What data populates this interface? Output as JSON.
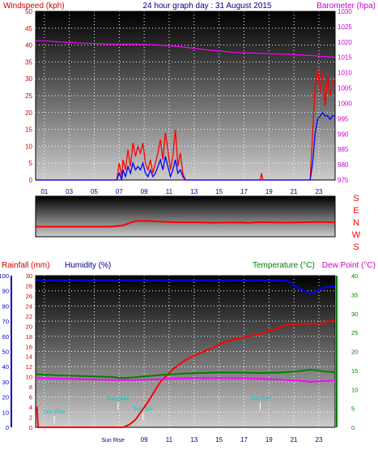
{
  "chart_data": [
    {
      "type": "line",
      "title": "24 hour graph day : 31 August 2015",
      "ylabel_left": "Windspeed (kph)",
      "ylabel_right": "Barometer (hpa)",
      "x_ticks": [
        "01",
        "03",
        "05",
        "07",
        "09",
        "11",
        "13",
        "15",
        "17",
        "19",
        "21",
        "23"
      ],
      "x": [
        0,
        1,
        2,
        3,
        4,
        5,
        6,
        6.5,
        6.7,
        6.9,
        7,
        7.2,
        7.4,
        7.6,
        7.8,
        8,
        8.2,
        8.4,
        8.6,
        8.8,
        9,
        9.2,
        9.4,
        9.6,
        9.8,
        10,
        10.2,
        10.4,
        10.6,
        10.8,
        11,
        11.2,
        11.4,
        11.6,
        11.8,
        12,
        13,
        14,
        15,
        16,
        17,
        18,
        18.1,
        18.2,
        19,
        20,
        21,
        22,
        22.2,
        22.4,
        22.6,
        22.8,
        23,
        23.2,
        23.4,
        23.6,
        23.8,
        24
      ],
      "series": [
        {
          "name": "gust",
          "color": "#ff0000",
          "values": [
            0,
            0,
            0,
            0,
            0,
            0,
            0,
            0,
            5,
            1,
            6,
            3,
            9,
            4,
            11,
            7,
            10,
            8,
            11,
            5,
            3,
            6,
            2,
            5,
            8,
            12,
            6,
            14,
            9,
            3,
            7,
            15,
            4,
            8,
            2,
            0,
            0,
            0,
            0,
            0,
            0,
            0,
            2,
            0,
            0,
            0,
            0,
            0,
            14,
            28,
            33,
            26,
            32,
            22,
            31,
            25,
            29,
            30
          ]
        },
        {
          "name": "wind",
          "color": "#0000ff",
          "values": [
            0,
            0,
            0,
            0,
            0,
            0,
            0,
            0,
            2,
            0,
            3,
            1,
            4,
            2,
            5,
            3,
            4,
            3,
            5,
            2,
            1,
            3,
            1,
            2,
            4,
            6,
            3,
            7,
            4,
            1,
            3,
            6,
            2,
            3,
            1,
            0,
            0,
            0,
            0,
            0,
            0,
            0,
            0,
            0,
            0,
            0,
            0,
            0,
            5,
            14,
            18,
            19,
            20,
            19,
            19,
            18,
            19,
            19
          ]
        }
      ],
      "baro_x": [
        0,
        1,
        2,
        4,
        6,
        8,
        10,
        12,
        14,
        16,
        18,
        20,
        22,
        23,
        24
      ],
      "baro_values": [
        1020.5,
        1020.3,
        1020.0,
        1019.6,
        1019.3,
        1019.3,
        1019.0,
        1018.3,
        1017.3,
        1016.6,
        1016.3,
        1016.0,
        1015.6,
        1015.3,
        1015.0
      ],
      "y_left_ticks": [
        0,
        5,
        10,
        15,
        20,
        25,
        30,
        35,
        40,
        45,
        50
      ],
      "y_right_ticks": [
        975,
        980,
        985,
        990,
        995,
        1000,
        1005,
        1010,
        1015,
        1020,
        1025,
        1030
      ],
      "ylim_left": [
        0,
        50
      ],
      "ylim_right": [
        975,
        1030
      ]
    },
    {
      "type": "line",
      "title": "",
      "legend_right": [
        "S",
        "E",
        "N",
        "W",
        "S"
      ],
      "x": [
        0,
        2,
        4,
        6,
        7,
        7.5,
        8,
        9,
        10,
        11,
        12,
        13,
        14,
        15,
        16,
        17,
        18,
        19,
        20,
        21,
        22,
        23,
        24
      ],
      "series": [
        {
          "name": "direction",
          "color": "#ff0000",
          "values": [
            90,
            90,
            90,
            90,
            100,
            120,
            140,
            140,
            135,
            130,
            128,
            128,
            125,
            126,
            128,
            124,
            130,
            128,
            126,
            128,
            130,
            132,
            128
          ]
        }
      ],
      "ylim": [
        0,
        360
      ]
    },
    {
      "type": "line",
      "title": "",
      "ylabel_left_1": "Rainfall (mm)",
      "ylabel_left_2": "Humidity (%)",
      "ylabel_right_1": "Temperature (°C)",
      "ylabel_right_2": "Dew Point (°C)",
      "humidity_ticks": [
        0,
        10,
        20,
        30,
        40,
        50,
        60,
        70,
        80,
        90,
        100
      ],
      "rain_ticks": [
        0,
        2,
        4,
        6,
        8,
        10,
        12,
        14,
        16,
        18,
        20,
        22,
        24,
        26,
        28,
        30
      ],
      "temp_ticks": [
        0,
        5,
        10,
        15,
        20,
        25,
        30,
        35,
        40
      ],
      "x_ticks": [
        "Sun Rise",
        "09",
        "11",
        "13",
        "15",
        "17",
        "19",
        "21",
        "23"
      ],
      "series": [
        {
          "name": "humidity",
          "color": "#0000ff",
          "x": [
            0,
            2,
            4,
            6,
            8,
            10,
            12,
            14,
            16,
            18,
            20,
            20.5,
            21,
            21.5,
            22,
            22.5,
            23,
            24
          ],
          "values": [
            97,
            97,
            97,
            97,
            97,
            97,
            97,
            97,
            97,
            97,
            97,
            95,
            92,
            90,
            88,
            90,
            92,
            93
          ]
        },
        {
          "name": "rainfall",
          "color": "#ff0000",
          "x": [
            0,
            0.01,
            0.1,
            0.2,
            6,
            7,
            7.5,
            8,
            9,
            10,
            11,
            12,
            13,
            14,
            15,
            16,
            17,
            18,
            19,
            20,
            21,
            22,
            23,
            23.5,
            23.6,
            24
          ],
          "values": [
            4,
            4,
            4,
            0,
            0,
            0,
            0.5,
            1.5,
            5,
            9,
            11.5,
            13.3,
            14.5,
            15.5,
            16.7,
            17.5,
            18,
            18.5,
            19.3,
            20.2,
            20.5,
            20.5,
            20.5,
            21,
            21,
            21
          ]
        },
        {
          "name": "temperature",
          "color": "#008000",
          "x": [
            0,
            2,
            4,
            6,
            7,
            8,
            10,
            12,
            14,
            16,
            18,
            20,
            21,
            22,
            23,
            24
          ],
          "values": [
            14,
            13.7,
            13.5,
            13.3,
            13.0,
            13.2,
            13.8,
            14.2,
            14.4,
            14.5,
            14.3,
            14.5,
            14.8,
            15.2,
            14.8,
            14.5
          ]
        },
        {
          "name": "dewpoint",
          "color": "#ff00ff",
          "x": [
            0,
            2,
            4,
            6,
            8,
            10,
            12,
            14,
            16,
            18,
            20,
            21,
            22,
            23,
            24
          ],
          "values": [
            13.0,
            12.8,
            12.7,
            12.5,
            12.5,
            12.7,
            13.0,
            13.0,
            13.0,
            12.8,
            12.5,
            12.3,
            12.0,
            12.2,
            12.3
          ]
        }
      ],
      "annotations": [
        {
          "text": "Sun Rise",
          "x": 6.6,
          "y": 0.18
        },
        {
          "text": "Sun Set",
          "x": 18.0,
          "y": 0.18
        },
        {
          "text": "Sun Rise",
          "x": 1.5,
          "y": 0.09
        },
        {
          "text": "Sun Set",
          "x": 8.6,
          "y": 0.11
        }
      ]
    }
  ]
}
